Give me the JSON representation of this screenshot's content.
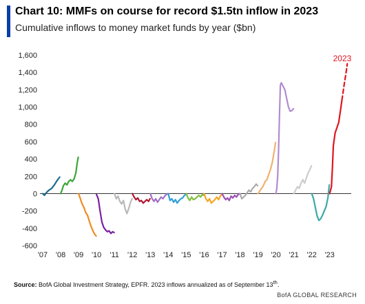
{
  "header": {
    "title": "Chart 10: MMFs on course for record $1.5tn inflow in 2023",
    "subtitle": "Cumulative inflows to money market funds by year ($bn)"
  },
  "footer": {
    "source_label": "Source:",
    "source_text": "BofA Global Investment Strategy, EPFR. 2023  inflows annualized as of September 13",
    "source_sup": "th",
    "source_end": ".",
    "brand": "BofA GLOBAL RESEARCH"
  },
  "chart_data": {
    "type": "line",
    "title": "",
    "xlabel": "",
    "ylabel": "",
    "ylim": [
      -600,
      1600
    ],
    "yticks": [
      -600,
      -400,
      -200,
      0,
      200,
      400,
      600,
      800,
      1000,
      1200,
      1400,
      1600
    ],
    "ytick_labels": [
      "-600",
      "-400",
      "-200",
      "0",
      "200",
      "400",
      "600",
      "800",
      "1,000",
      "1,200",
      "1,400",
      "1,600"
    ],
    "xlim": [
      2007,
      2024.2
    ],
    "xticks": [
      2007,
      2008,
      2009,
      2010,
      2011,
      2012,
      2013,
      2014,
      2015,
      2016,
      2017,
      2018,
      2019,
      2020,
      2021,
      2022,
      2023
    ],
    "xtick_labels": [
      "'07",
      "'08",
      "'09",
      "'10",
      "'11",
      "'12",
      "'13",
      "'14",
      "'15",
      "'16",
      "'17",
      "'18",
      "'19",
      "'20",
      "'21",
      "'22",
      "'23"
    ],
    "grid": false,
    "zero_line": true,
    "annotations": [
      {
        "text": "2023",
        "x": 2023.7,
        "y": 1530,
        "color": "#e0141e"
      }
    ],
    "series": [
      {
        "year": "2007",
        "color": "#1c6b8f",
        "values": [
          [
            2007.0,
            0
          ],
          [
            2007.1,
            -20
          ],
          [
            2007.2,
            10
          ],
          [
            2007.35,
            40
          ],
          [
            2007.5,
            60
          ],
          [
            2007.65,
            100
          ],
          [
            2007.8,
            150
          ],
          [
            2007.95,
            190
          ]
        ]
      },
      {
        "year": "2008",
        "color": "#3aa63a",
        "values": [
          [
            2008.0,
            0
          ],
          [
            2008.08,
            40
          ],
          [
            2008.15,
            90
          ],
          [
            2008.25,
            120
          ],
          [
            2008.35,
            100
          ],
          [
            2008.45,
            140
          ],
          [
            2008.55,
            160
          ],
          [
            2008.65,
            140
          ],
          [
            2008.75,
            170
          ],
          [
            2008.85,
            240
          ],
          [
            2008.92,
            350
          ],
          [
            2008.98,
            420
          ]
        ]
      },
      {
        "year": "2009",
        "color": "#f08a24",
        "values": [
          [
            2009.0,
            0
          ],
          [
            2009.1,
            -60
          ],
          [
            2009.2,
            -120
          ],
          [
            2009.3,
            -160
          ],
          [
            2009.4,
            -220
          ],
          [
            2009.5,
            -250
          ],
          [
            2009.6,
            -320
          ],
          [
            2009.7,
            -380
          ],
          [
            2009.8,
            -430
          ],
          [
            2009.9,
            -470
          ],
          [
            2009.98,
            -490
          ]
        ]
      },
      {
        "year": "2010",
        "color": "#7a1fa0",
        "values": [
          [
            2010.0,
            -10
          ],
          [
            2010.1,
            -60
          ],
          [
            2010.2,
            -200
          ],
          [
            2010.3,
            -330
          ],
          [
            2010.4,
            -390
          ],
          [
            2010.5,
            -420
          ],
          [
            2010.6,
            -440
          ],
          [
            2010.7,
            -430
          ],
          [
            2010.8,
            -460
          ],
          [
            2010.9,
            -440
          ],
          [
            2010.98,
            -450
          ]
        ]
      },
      {
        "year": "2011",
        "color": "#b8b8b8",
        "values": [
          [
            2011.0,
            0
          ],
          [
            2011.1,
            -60
          ],
          [
            2011.2,
            -30
          ],
          [
            2011.3,
            -90
          ],
          [
            2011.4,
            -120
          ],
          [
            2011.5,
            -80
          ],
          [
            2011.6,
            -180
          ],
          [
            2011.7,
            -230
          ],
          [
            2011.8,
            -170
          ],
          [
            2011.9,
            -100
          ],
          [
            2011.98,
            -60
          ]
        ]
      },
      {
        "year": "2012",
        "color": "#b0182e",
        "values": [
          [
            2012.0,
            0
          ],
          [
            2012.1,
            -40
          ],
          [
            2012.2,
            -70
          ],
          [
            2012.3,
            -50
          ],
          [
            2012.4,
            -90
          ],
          [
            2012.5,
            -80
          ],
          [
            2012.6,
            -110
          ],
          [
            2012.7,
            -90
          ],
          [
            2012.8,
            -70
          ],
          [
            2012.9,
            -90
          ],
          [
            2012.98,
            -60
          ]
        ]
      },
      {
        "year": "2013",
        "color": "#a070c8",
        "values": [
          [
            2013.0,
            0
          ],
          [
            2013.1,
            -60
          ],
          [
            2013.2,
            -90
          ],
          [
            2013.3,
            -60
          ],
          [
            2013.4,
            -100
          ],
          [
            2013.5,
            -70
          ],
          [
            2013.6,
            -40
          ],
          [
            2013.7,
            -60
          ],
          [
            2013.8,
            -30
          ],
          [
            2013.9,
            -10
          ],
          [
            2013.98,
            0
          ]
        ]
      },
      {
        "year": "2014",
        "color": "#2f9fd6",
        "values": [
          [
            2014.0,
            0
          ],
          [
            2014.1,
            -80
          ],
          [
            2014.2,
            -60
          ],
          [
            2014.3,
            -100
          ],
          [
            2014.4,
            -70
          ],
          [
            2014.5,
            -110
          ],
          [
            2014.6,
            -80
          ],
          [
            2014.7,
            -60
          ],
          [
            2014.8,
            -50
          ],
          [
            2014.9,
            -20
          ],
          [
            2014.98,
            -10
          ]
        ]
      },
      {
        "year": "2015",
        "color": "#7fbf3f",
        "values": [
          [
            2015.0,
            0
          ],
          [
            2015.1,
            -50
          ],
          [
            2015.2,
            -80
          ],
          [
            2015.3,
            -40
          ],
          [
            2015.4,
            -70
          ],
          [
            2015.5,
            -60
          ],
          [
            2015.6,
            -40
          ],
          [
            2015.7,
            -20
          ],
          [
            2015.8,
            -40
          ],
          [
            2015.9,
            -10
          ],
          [
            2015.98,
            -20
          ]
        ]
      },
      {
        "year": "2016",
        "color": "#f5a623",
        "values": [
          [
            2016.0,
            0
          ],
          [
            2016.1,
            -60
          ],
          [
            2016.2,
            -90
          ],
          [
            2016.3,
            -60
          ],
          [
            2016.4,
            -110
          ],
          [
            2016.5,
            -90
          ],
          [
            2016.6,
            -70
          ],
          [
            2016.7,
            -40
          ],
          [
            2016.8,
            -70
          ],
          [
            2016.9,
            -30
          ],
          [
            2016.98,
            -10
          ]
        ]
      },
      {
        "year": "2017",
        "color": "#9b4fb5",
        "values": [
          [
            2017.0,
            0
          ],
          [
            2017.1,
            -40
          ],
          [
            2017.2,
            -70
          ],
          [
            2017.3,
            -50
          ],
          [
            2017.4,
            -80
          ],
          [
            2017.5,
            -30
          ],
          [
            2017.6,
            -50
          ],
          [
            2017.7,
            -20
          ],
          [
            2017.8,
            -40
          ],
          [
            2017.9,
            -10
          ],
          [
            2017.98,
            0
          ]
        ]
      },
      {
        "year": "2018",
        "color": "#aaaaaa",
        "values": [
          [
            2018.0,
            0
          ],
          [
            2018.1,
            -60
          ],
          [
            2018.2,
            -40
          ],
          [
            2018.3,
            -20
          ],
          [
            2018.4,
            10
          ],
          [
            2018.5,
            40
          ],
          [
            2018.6,
            20
          ],
          [
            2018.7,
            60
          ],
          [
            2018.8,
            80
          ],
          [
            2018.9,
            110
          ],
          [
            2018.98,
            90
          ]
        ]
      },
      {
        "year": "2019",
        "color": "#f0b070",
        "values": [
          [
            2019.0,
            0
          ],
          [
            2019.1,
            30
          ],
          [
            2019.2,
            60
          ],
          [
            2019.3,
            90
          ],
          [
            2019.4,
            140
          ],
          [
            2019.5,
            160
          ],
          [
            2019.6,
            220
          ],
          [
            2019.7,
            280
          ],
          [
            2019.8,
            360
          ],
          [
            2019.9,
            480
          ],
          [
            2019.98,
            590
          ]
        ]
      },
      {
        "year": "2020",
        "color": "#b08cd0",
        "values": [
          [
            2020.0,
            0
          ],
          [
            2020.05,
            60
          ],
          [
            2020.1,
            200
          ],
          [
            2020.15,
            500
          ],
          [
            2020.2,
            900
          ],
          [
            2020.25,
            1250
          ],
          [
            2020.3,
            1280
          ],
          [
            2020.4,
            1240
          ],
          [
            2020.5,
            1200
          ],
          [
            2020.6,
            1100
          ],
          [
            2020.7,
            1000
          ],
          [
            2020.8,
            950
          ],
          [
            2020.9,
            960
          ],
          [
            2020.98,
            980
          ]
        ]
      },
      {
        "year": "2021",
        "color": "#cccccc",
        "values": [
          [
            2021.0,
            0
          ],
          [
            2021.1,
            40
          ],
          [
            2021.2,
            80
          ],
          [
            2021.3,
            60
          ],
          [
            2021.4,
            120
          ],
          [
            2021.5,
            160
          ],
          [
            2021.6,
            120
          ],
          [
            2021.7,
            180
          ],
          [
            2021.8,
            240
          ],
          [
            2021.9,
            280
          ],
          [
            2021.98,
            320
          ]
        ]
      },
      {
        "year": "2022",
        "color": "#3aa8a8",
        "values": [
          [
            2022.0,
            0
          ],
          [
            2022.1,
            -60
          ],
          [
            2022.2,
            -160
          ],
          [
            2022.3,
            -260
          ],
          [
            2022.4,
            -310
          ],
          [
            2022.5,
            -290
          ],
          [
            2022.6,
            -250
          ],
          [
            2022.7,
            -200
          ],
          [
            2022.8,
            -150
          ],
          [
            2022.9,
            -50
          ],
          [
            2022.98,
            100
          ]
        ]
      },
      {
        "year": "2023",
        "color": "#e0141e",
        "values": [
          [
            2023.0,
            0
          ],
          [
            2023.1,
            80
          ],
          [
            2023.15,
            300
          ],
          [
            2023.2,
            550
          ],
          [
            2023.3,
            700
          ],
          [
            2023.4,
            760
          ],
          [
            2023.5,
            820
          ],
          [
            2023.6,
            960
          ],
          [
            2023.68,
            1080
          ]
        ]
      },
      {
        "year": "2023 (annualized)",
        "color": "#e0141e",
        "dashed": true,
        "values": [
          [
            2023.68,
            1080
          ],
          [
            2023.8,
            1250
          ],
          [
            2023.9,
            1380
          ],
          [
            2023.98,
            1500
          ]
        ]
      }
    ]
  }
}
